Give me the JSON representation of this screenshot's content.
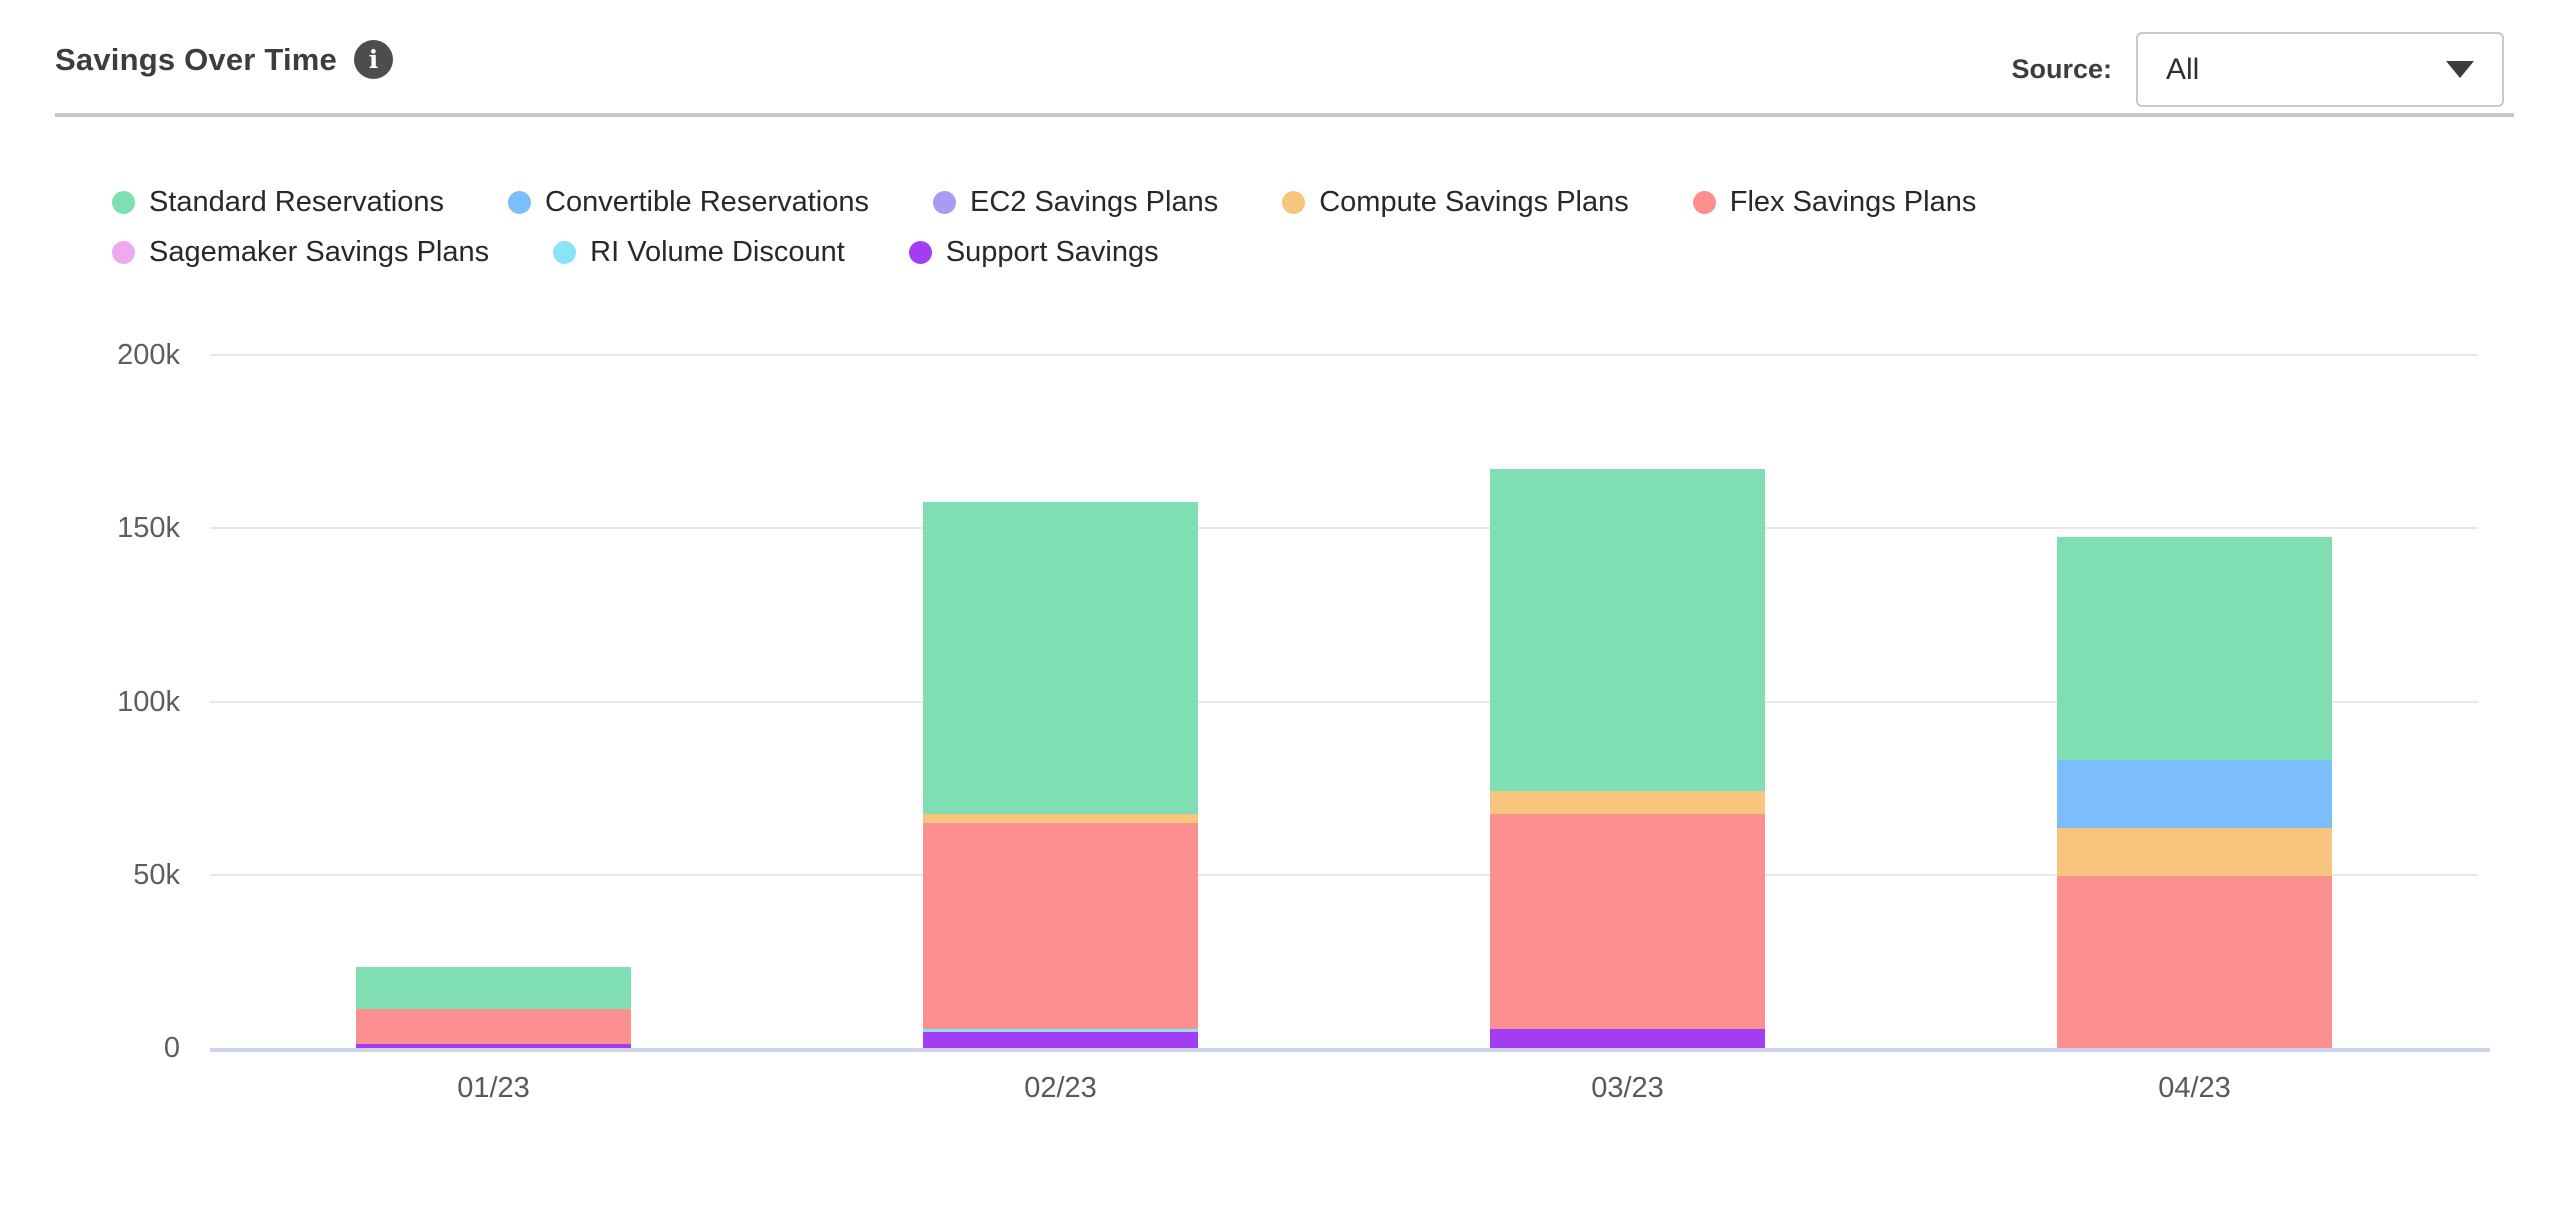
{
  "header": {
    "title": "Savings Over Time",
    "info_glyph": "i",
    "source_label": "Source:",
    "source_value": "All"
  },
  "icons": {
    "info": "info-icon",
    "dropdown_caret": "chevron-down-icon"
  },
  "colors": {
    "standard_reservations": "#7FDFB2",
    "convertible_reservations": "#7CBEFC",
    "ec2_savings_plans": "#A89CF2",
    "compute_savings_plans": "#F8C57E",
    "flex_savings_plans": "#FC8F8F",
    "sagemaker_savings_plans": "#EFA9F0",
    "ri_volume_discount": "#8AE4F8",
    "support_savings": "#A33DF2",
    "gridline": "#e9e9e9",
    "axis_baseline": "#ccd3ec"
  },
  "chart_data": {
    "type": "bar",
    "stacked": true,
    "title": "Savings Over Time",
    "categories": [
      "01/23",
      "02/23",
      "03/23",
      "04/23"
    ],
    "xlabel": "",
    "ylabel": "",
    "ylim": [
      0,
      200000
    ],
    "grid": true,
    "legend_position": "top",
    "yticks": [
      {
        "label": "200k",
        "value": 200000
      },
      {
        "label": "150k",
        "value": 150000
      },
      {
        "label": "100k",
        "value": 100000
      },
      {
        "label": "50k",
        "value": 50000
      },
      {
        "label": "0",
        "value": 0
      }
    ],
    "series": [
      {
        "name": "Standard Reservations",
        "color": "#7FDFB2",
        "values": [
          12000,
          90000,
          93000,
          64500
        ]
      },
      {
        "name": "Convertible Reservations",
        "color": "#7CBEFC",
        "values": [
          0,
          0,
          0,
          19500
        ]
      },
      {
        "name": "EC2 Savings Plans",
        "color": "#A89CF2",
        "values": [
          0,
          0,
          0,
          0
        ]
      },
      {
        "name": "Compute Savings Plans",
        "color": "#F8C57E",
        "values": [
          0,
          2600,
          6600,
          14000
        ]
      },
      {
        "name": "Flex Savings Plans",
        "color": "#FC8F8F",
        "values": [
          10000,
          59500,
          62000,
          49500
        ]
      },
      {
        "name": "Sagemaker Savings Plans",
        "color": "#EFA9F0",
        "values": [
          0,
          0,
          0,
          0
        ]
      },
      {
        "name": "RI Volume Discount",
        "color": "#8AE4F8",
        "values": [
          0,
          900,
          0,
          0
        ]
      },
      {
        "name": "Support Savings",
        "color": "#A33DF2",
        "values": [
          1300,
          4500,
          5500,
          0
        ]
      }
    ]
  }
}
